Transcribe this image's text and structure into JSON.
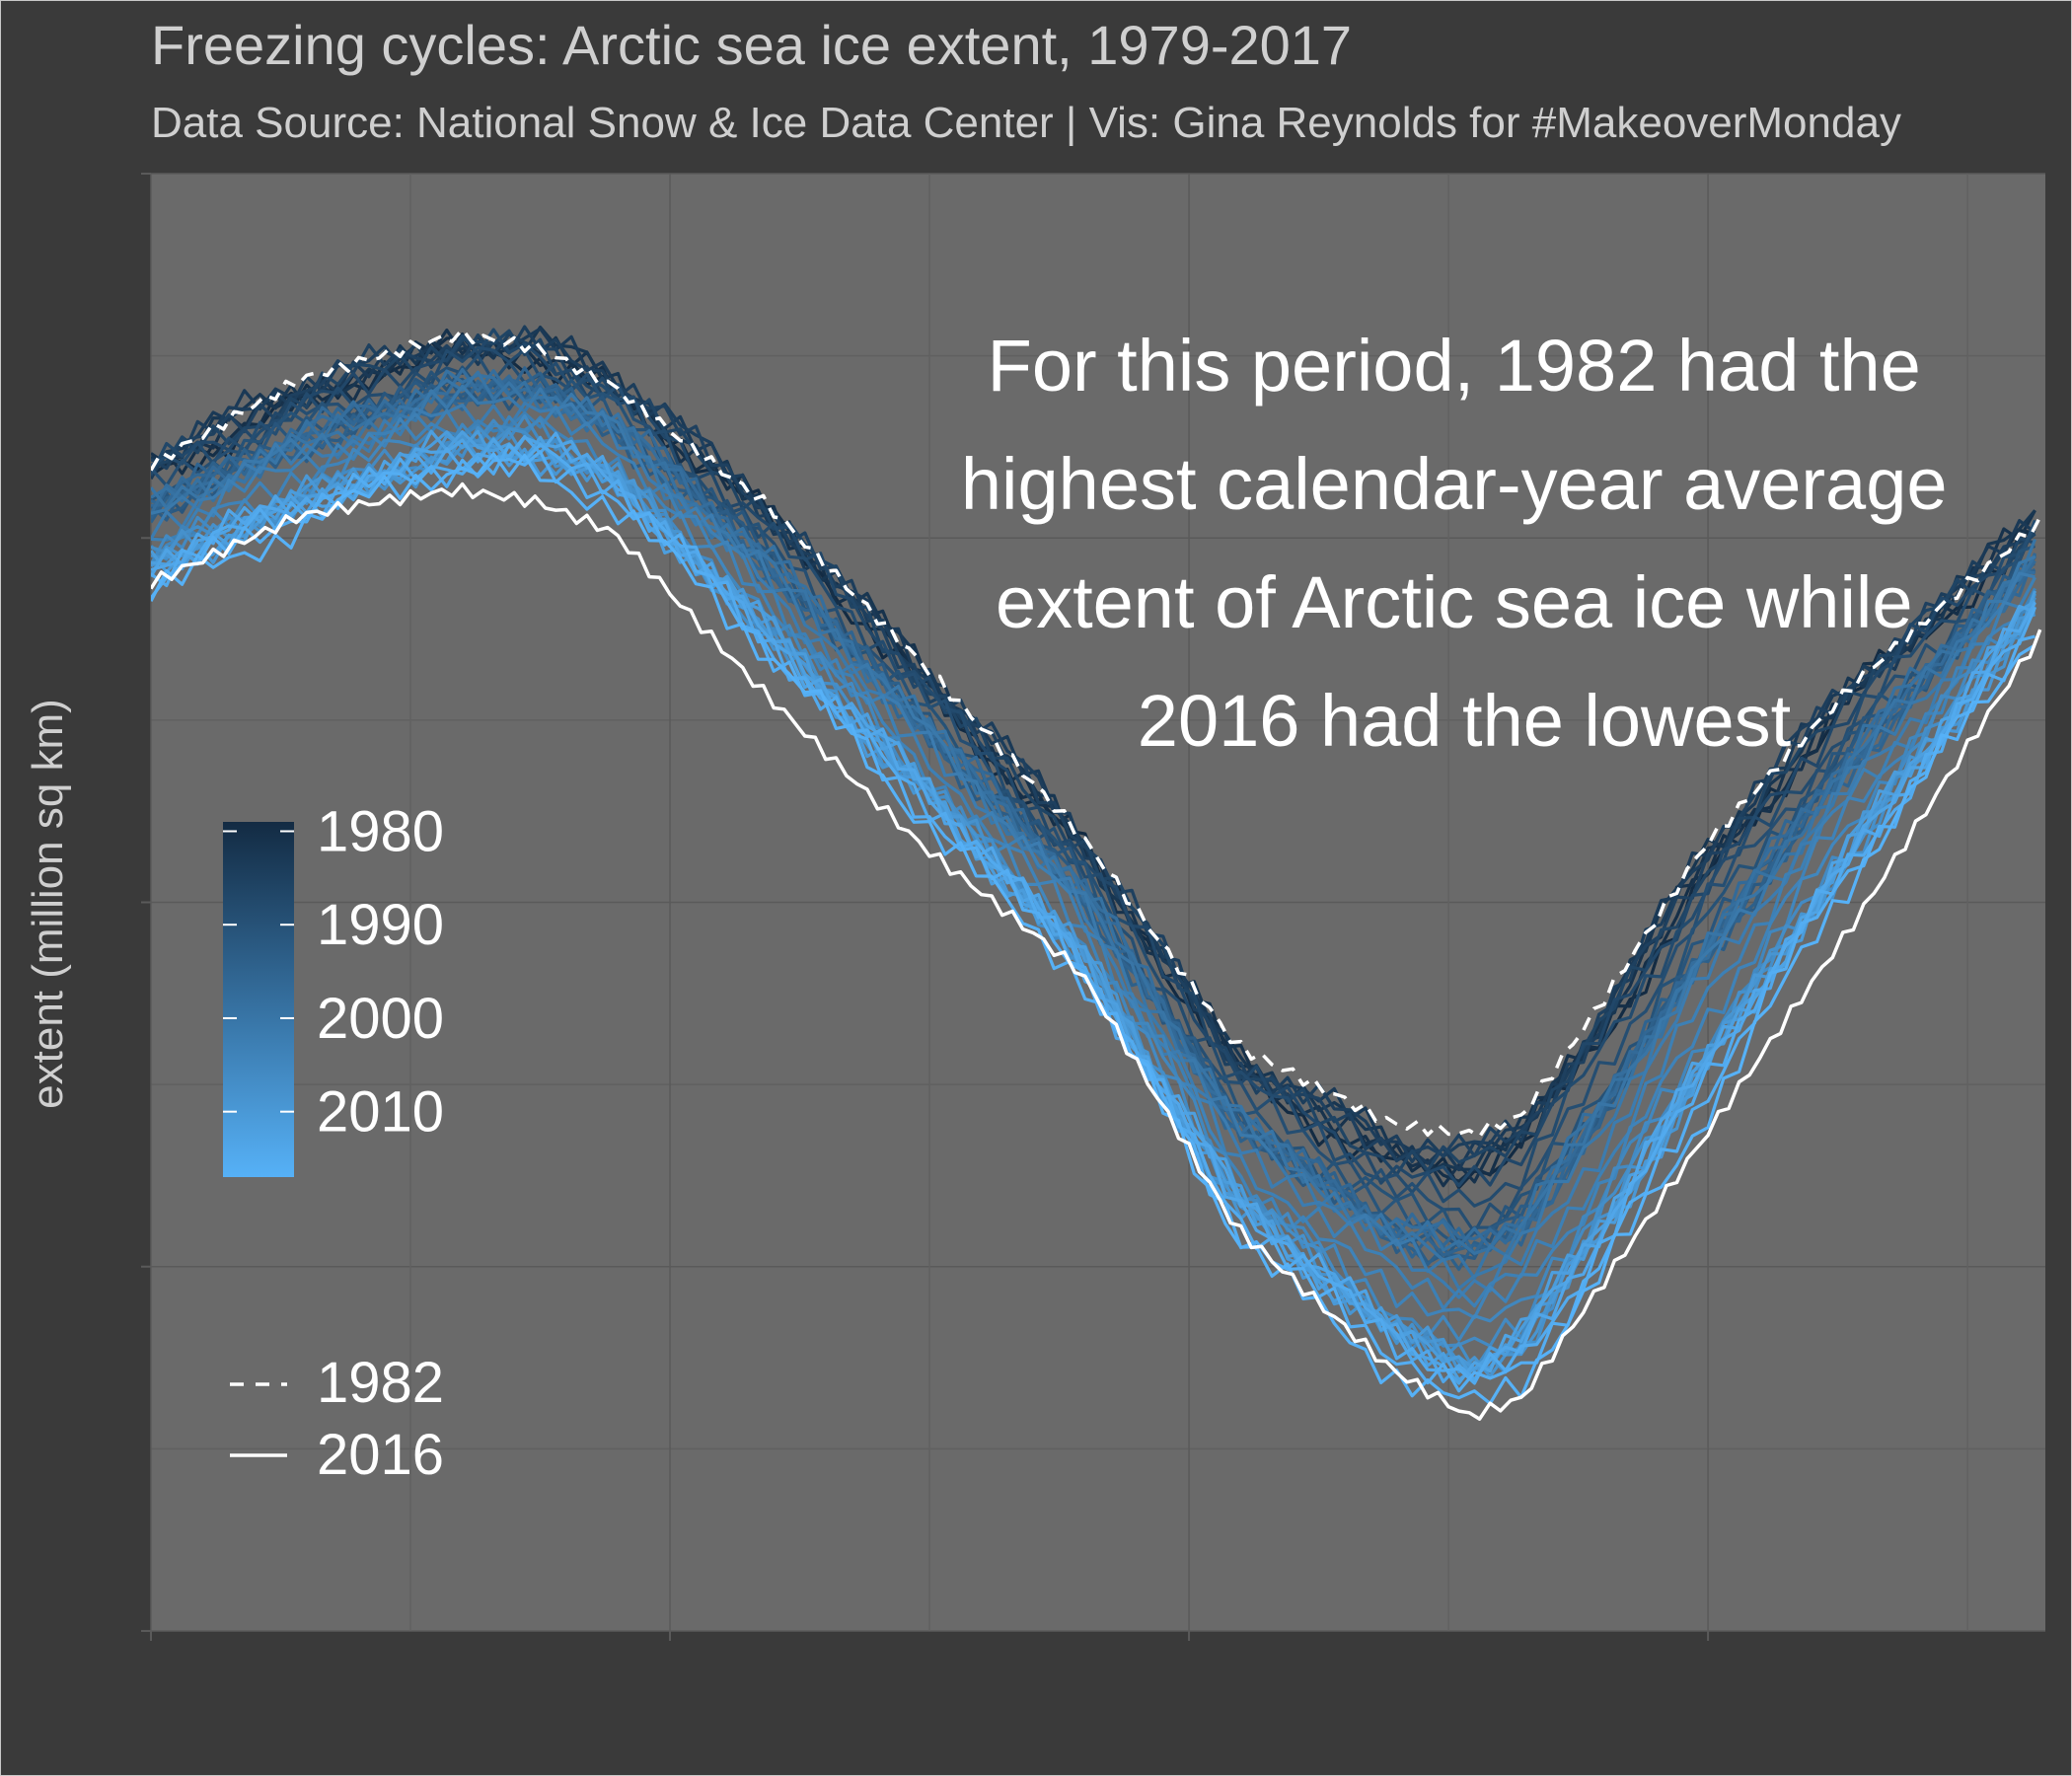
{
  "chart_data": {
    "type": "line",
    "title": "Freezing cycles: Arctic sea ice extent, 1979-2017",
    "subtitle": "Data Source: National Snow & Ice Data Center | Vis: Gina Reynolds for #MakeoverMonday",
    "xlabel": "",
    "ylabel": "extent (million sq km)",
    "x_unit": "day of year",
    "xlim": [
      1,
      366
    ],
    "ylim": [
      2,
      18
    ],
    "grid": true,
    "annotation": "For this period, 1982 had the highest calendar-year average extent of Arctic sea ice while 2016 had the lowest",
    "color_legend": {
      "title": "",
      "placement": "left",
      "labels": [
        "1980",
        "1990",
        "2000",
        "2010"
      ],
      "range": [
        1979,
        2017
      ],
      "colors": [
        "#132B43",
        "#56B1F7"
      ]
    },
    "line_legend": {
      "title": "",
      "placement": "bottom-left",
      "entries": [
        {
          "label": "1982",
          "style": "dashed"
        },
        {
          "label": "2016",
          "style": "solid"
        }
      ]
    },
    "highlight_series": [
      {
        "name": "1982",
        "style": "dashed",
        "color": "#ffffff",
        "x": [
          1,
          30,
          60,
          75,
          90,
          120,
          150,
          180,
          210,
          240,
          255,
          265,
          280,
          300,
          330,
          366
        ],
        "y": [
          14.8,
          15.7,
          16.2,
          16.1,
          15.7,
          14.4,
          12.6,
          10.7,
          8.4,
          7.6,
          7.5,
          7.7,
          8.9,
          10.6,
          12.4,
          14.2
        ]
      },
      {
        "name": "2016",
        "style": "solid",
        "color": "#ffffff",
        "x": [
          1,
          30,
          60,
          75,
          90,
          120,
          150,
          180,
          210,
          240,
          255,
          265,
          280,
          300,
          330,
          366
        ],
        "y": [
          13.5,
          14.2,
          14.5,
          14.4,
          14.1,
          12.3,
          10.6,
          9.2,
          6.4,
          4.9,
          4.4,
          4.6,
          5.8,
          7.4,
          9.8,
          13.0
        ]
      }
    ],
    "series_range": {
      "years": [
        1979,
        2017
      ],
      "x": [
        1,
        30,
        60,
        75,
        90,
        120,
        150,
        180,
        210,
        240,
        255,
        265,
        280,
        300,
        330,
        366
      ],
      "y_high": [
        15.0,
        15.8,
        16.3,
        16.3,
        15.9,
        14.5,
        12.7,
        10.9,
        8.5,
        7.6,
        7.5,
        7.8,
        9.0,
        10.8,
        12.7,
        14.4
      ],
      "y_low": [
        13.3,
        14.0,
        14.6,
        14.6,
        14.3,
        12.5,
        10.8,
        9.0,
        6.2,
        4.6,
        4.1,
        4.4,
        5.6,
        7.4,
        10.1,
        13.1
      ]
    }
  }
}
